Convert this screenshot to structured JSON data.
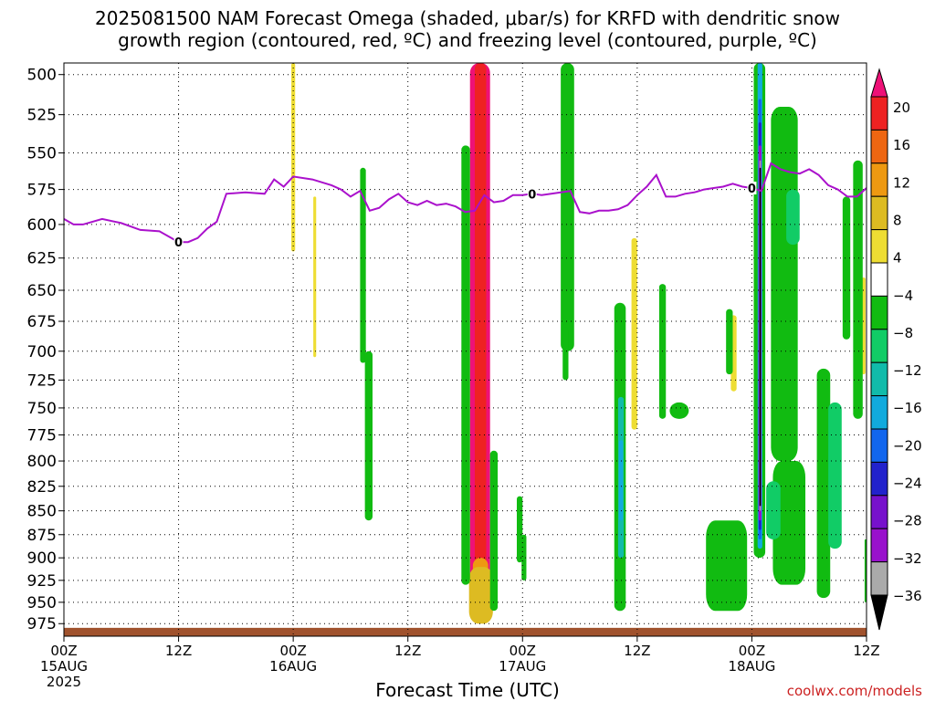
{
  "chart_data": {
    "type": "heatmap",
    "title": "2025081500 NAM Forecast Omega (shaded, μbar/s) for KRFD with dendritic snow",
    "subtitle": "growth region (contoured, red, ºC) and freezing level (contoured, purple, ºC)",
    "xlabel": "Forecast Time (UTC)",
    "ylabel": "",
    "x_hours_range": [
      0,
      84
    ],
    "y_pressure_range": [
      990,
      493
    ],
    "y_scale": "inverted pressure",
    "grid": true,
    "x_ticks": [
      {
        "hour": 0,
        "label": "00Z",
        "sub": "15AUG",
        "sub2": "2025"
      },
      {
        "hour": 12,
        "label": "12Z",
        "sub": "",
        "sub2": ""
      },
      {
        "hour": 24,
        "label": "00Z",
        "sub": "16AUG",
        "sub2": ""
      },
      {
        "hour": 36,
        "label": "12Z",
        "sub": "",
        "sub2": ""
      },
      {
        "hour": 48,
        "label": "00Z",
        "sub": "17AUG",
        "sub2": ""
      },
      {
        "hour": 60,
        "label": "12Z",
        "sub": "",
        "sub2": ""
      },
      {
        "hour": 72,
        "label": "00Z",
        "sub": "18AUG",
        "sub2": ""
      },
      {
        "hour": 84,
        "label": "12Z",
        "sub": "",
        "sub2": ""
      }
    ],
    "y_ticks": [
      500,
      525,
      550,
      575,
      600,
      625,
      650,
      675,
      700,
      725,
      750,
      775,
      800,
      825,
      850,
      875,
      900,
      925,
      950,
      975
    ],
    "colorbar": {
      "labels": [
        "20",
        "16",
        "12",
        "8",
        "4",
        "−4",
        "−8",
        "−12",
        "−16",
        "−20",
        "−24",
        "−28",
        "−32",
        "−36"
      ],
      "colors": [
        "#ee1177",
        "#ee2222",
        "#ee6611",
        "#ee9911",
        "#ddbb22",
        "#eedd33",
        "#ffffff",
        "#11bb11",
        "#11cc66",
        "#11bbaa",
        "#11aadd",
        "#1166ee",
        "#2222cc",
        "#7711cc",
        "#9911cc",
        "#aaaaaa",
        "#000000"
      ]
    },
    "freezing_level": {
      "color": "#aa11cc",
      "label": "0",
      "hours": [
        0,
        1,
        2,
        4,
        6,
        8,
        10,
        12,
        13,
        14,
        15,
        16,
        17,
        19,
        21,
        22,
        23,
        24,
        26,
        28,
        29,
        30,
        31,
        32,
        33,
        34,
        35,
        36,
        37,
        38,
        39,
        40,
        41,
        42,
        43,
        44,
        45,
        46,
        47,
        48,
        49,
        50,
        51,
        52,
        53,
        54,
        55,
        56,
        57,
        58,
        59,
        60,
        61,
        62,
        63,
        64,
        65,
        66,
        67,
        68,
        69,
        70,
        71,
        72,
        73,
        74,
        75,
        76,
        77,
        78,
        79,
        80,
        81,
        82,
        83,
        84
      ],
      "pressures": [
        596,
        600,
        600,
        596,
        599,
        604,
        605,
        613,
        613,
        610,
        603,
        598,
        578,
        577,
        578,
        568,
        573,
        566,
        568,
        572,
        575,
        580,
        576,
        590,
        588,
        582,
        578,
        584,
        586,
        583,
        586,
        585,
        587,
        591,
        590,
        579,
        584,
        583,
        579,
        579,
        578,
        579,
        578,
        577,
        576,
        591,
        592,
        590,
        590,
        589,
        586,
        579,
        573,
        565,
        580,
        580,
        578,
        577,
        575,
        574,
        573,
        571,
        573,
        574,
        576,
        557,
        561,
        563,
        564,
        561,
        565,
        572,
        575,
        580,
        580,
        574
      ]
    },
    "omega_regions": [
      {
        "value": "rising-strong",
        "color": "#ee1177",
        "h0": 42.5,
        "h1": 44.6,
        "p_top": 493,
        "p_bot": 965
      },
      {
        "value": "rising",
        "color": "#ee2222",
        "h0": 43.0,
        "h1": 44.2,
        "p_top": 493,
        "p_bot": 960
      },
      {
        "value": "rising-weak",
        "color": "#ee9911",
        "h0": 42.8,
        "h1": 44.4,
        "p_top": 900,
        "p_bot": 970
      },
      {
        "value": "rising-weak",
        "color": "#ddbb22",
        "h0": 42.4,
        "h1": 44.9,
        "p_top": 910,
        "p_bot": 975
      },
      {
        "value": "rising-weak",
        "color": "#eedd33",
        "h0": 23.8,
        "h1": 24.2,
        "p_top": 493,
        "p_bot": 620
      },
      {
        "value": "rising-weak",
        "color": "#eedd33",
        "h0": 26.1,
        "h1": 26.4,
        "p_top": 580,
        "p_bot": 705
      },
      {
        "value": "rising-weak",
        "color": "#eedd33",
        "h0": 59.4,
        "h1": 60.0,
        "p_top": 610,
        "p_bot": 770
      },
      {
        "value": "rising-weak",
        "color": "#eedd33",
        "h0": 69.8,
        "h1": 70.4,
        "p_top": 670,
        "p_bot": 735
      },
      {
        "value": "rising-weak",
        "color": "#eedd33",
        "h0": 83.5,
        "h1": 83.9,
        "p_top": 640,
        "p_bot": 720
      },
      {
        "value": "sinking",
        "color": "#11bb11",
        "h0": 31.0,
        "h1": 31.6,
        "p_top": 560,
        "p_bot": 710
      },
      {
        "value": "sinking",
        "color": "#11bb11",
        "h0": 31.5,
        "h1": 32.3,
        "p_top": 700,
        "p_bot": 860
      },
      {
        "value": "sinking",
        "color": "#11bb11",
        "h0": 41.6,
        "h1": 42.5,
        "p_top": 545,
        "p_bot": 930
      },
      {
        "value": "sinking",
        "color": "#11bb11",
        "h0": 44.6,
        "h1": 45.4,
        "p_top": 790,
        "p_bot": 960
      },
      {
        "value": "sinking",
        "color": "#11bb11",
        "h0": 47.4,
        "h1": 48.0,
        "p_top": 835,
        "p_bot": 905
      },
      {
        "value": "sinking",
        "color": "#11bb11",
        "h0": 47.9,
        "h1": 48.4,
        "p_top": 875,
        "p_bot": 925
      },
      {
        "value": "sinking",
        "color": "#11bb11",
        "h0": 52.0,
        "h1": 53.4,
        "p_top": 493,
        "p_bot": 700
      },
      {
        "value": "sinking",
        "color": "#11bb11",
        "h0": 52.2,
        "h1": 52.8,
        "p_top": 680,
        "p_bot": 725
      },
      {
        "value": "sinking",
        "color": "#11bb11",
        "h0": 57.6,
        "h1": 58.8,
        "p_top": 660,
        "p_bot": 960
      },
      {
        "value": "sinking",
        "color": "#11bb11",
        "h0": 62.3,
        "h1": 63.0,
        "p_top": 645,
        "p_bot": 760
      },
      {
        "value": "sinking",
        "color": "#11bb11",
        "h0": 63.4,
        "h1": 65.4,
        "p_top": 745,
        "p_bot": 760
      },
      {
        "value": "sinking",
        "color": "#11bb11",
        "h0": 69.3,
        "h1": 70.0,
        "p_top": 665,
        "p_bot": 720
      },
      {
        "value": "sinking",
        "color": "#11bb11",
        "h0": 67.2,
        "h1": 71.5,
        "p_top": 860,
        "p_bot": 960
      },
      {
        "value": "sinking",
        "color": "#11bb11",
        "h0": 72.2,
        "h1": 73.4,
        "p_top": 493,
        "p_bot": 900
      },
      {
        "value": "sinking",
        "color": "#11bb11",
        "h0": 74.0,
        "h1": 76.8,
        "p_top": 520,
        "p_bot": 800
      },
      {
        "value": "sinking",
        "color": "#11bb11",
        "h0": 74.2,
        "h1": 77.6,
        "p_top": 800,
        "p_bot": 930
      },
      {
        "value": "sinking",
        "color": "#11bb11",
        "h0": 78.8,
        "h1": 80.2,
        "p_top": 715,
        "p_bot": 945
      },
      {
        "value": "sinking",
        "color": "#11bb11",
        "h0": 81.5,
        "h1": 82.3,
        "p_top": 580,
        "p_bot": 690
      },
      {
        "value": "sinking",
        "color": "#11bb11",
        "h0": 82.6,
        "h1": 83.6,
        "p_top": 555,
        "p_bot": 760
      },
      {
        "value": "sinking",
        "color": "#11bb11",
        "h0": 83.8,
        "h1": 84.0,
        "p_top": 880,
        "p_bot": 950
      },
      {
        "value": "sinking-mod",
        "color": "#11cc66",
        "h0": 75.6,
        "h1": 77.0,
        "p_top": 575,
        "p_bot": 615
      },
      {
        "value": "sinking-mod",
        "color": "#11cc66",
        "h0": 80.0,
        "h1": 81.4,
        "p_top": 745,
        "p_bot": 890
      },
      {
        "value": "sinking-mod",
        "color": "#11cc66",
        "h0": 73.5,
        "h1": 75.0,
        "p_top": 820,
        "p_bot": 880
      },
      {
        "value": "sinking-mod",
        "color": "#11bbaa",
        "h0": 58.0,
        "h1": 58.6,
        "p_top": 740,
        "p_bot": 900
      },
      {
        "value": "sinking-strong",
        "color": "#11aadd",
        "h0": 58.1,
        "h1": 58.5,
        "p_top": 780,
        "p_bot": 860
      },
      {
        "value": "sinking-strong",
        "color": "#11aadd",
        "h0": 72.6,
        "h1": 73.1,
        "p_top": 493,
        "p_bot": 890
      },
      {
        "value": "sinking-strong",
        "color": "#1166ee",
        "h0": 72.7,
        "h1": 73.0,
        "p_top": 515,
        "p_bot": 880
      },
      {
        "value": "sinking-strong",
        "color": "#2222cc",
        "h0": 72.7,
        "h1": 73.0,
        "p_top": 530,
        "p_bot": 870
      },
      {
        "value": "sinking-strong",
        "color": "#9911cc",
        "h0": 72.7,
        "h1": 73.0,
        "p_top": 545,
        "p_bot": 860
      },
      {
        "value": "sinking-strong",
        "color": "#aaaaaa",
        "h0": 72.8,
        "h1": 72.9,
        "p_top": 555,
        "p_bot": 850
      },
      {
        "value": "sinking-extreme",
        "color": "#000000",
        "h0": 72.8,
        "h1": 72.9,
        "p_top": 560,
        "p_bot": 845
      }
    ]
  },
  "credit": "coolwx.com/models"
}
